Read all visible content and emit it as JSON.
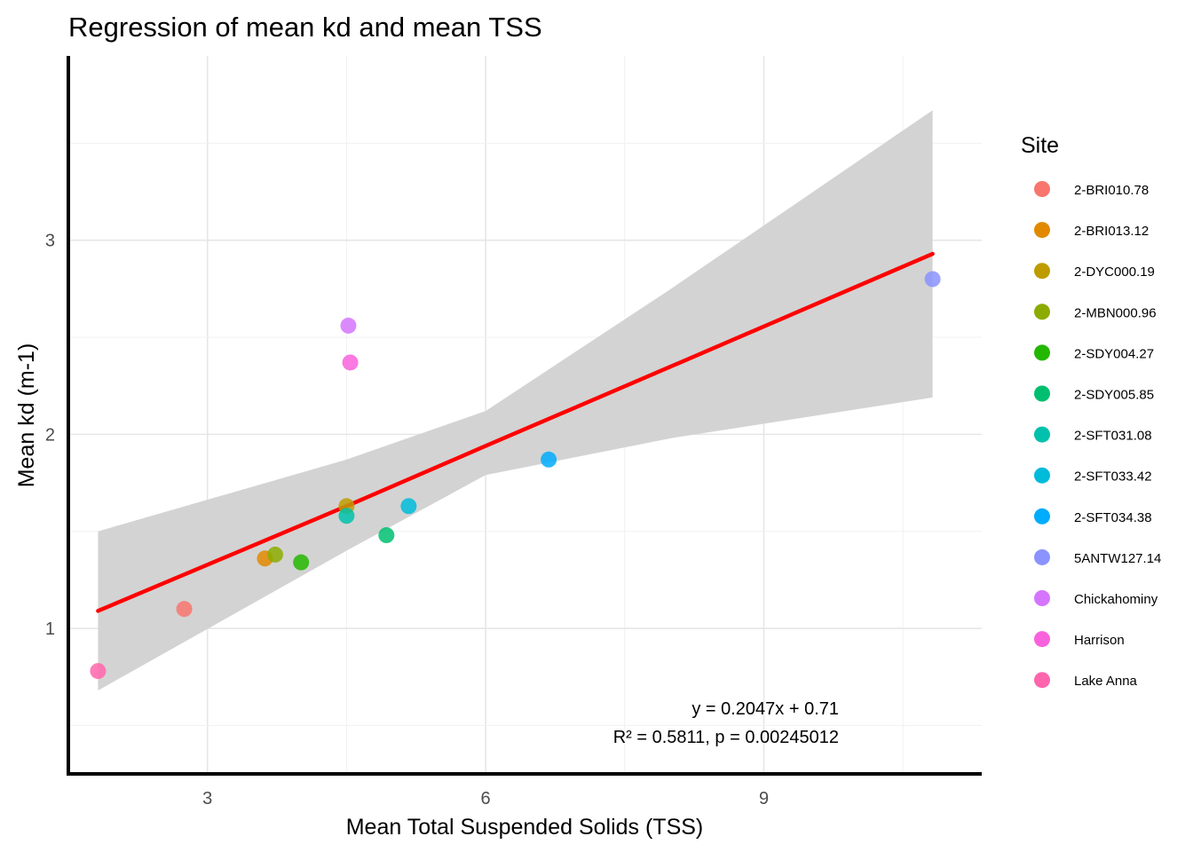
{
  "chart_data": {
    "type": "scatter",
    "title": "Regression of mean kd and mean TSS",
    "xlabel": "Mean Total Suspended Solids (TSS)",
    "ylabel": "Mean kd (m-1)",
    "xlim": [
      1.5,
      11.35
    ],
    "ylim": [
      0.25,
      3.95
    ],
    "x_ticks": [
      3,
      6,
      9
    ],
    "y_ticks": [
      1,
      2,
      3
    ],
    "x_tick_labels": [
      "3",
      "6",
      "9"
    ],
    "y_tick_labels": [
      "1",
      "2",
      "3"
    ],
    "grid": true,
    "legend": {
      "title": "Site",
      "placement": "right"
    },
    "series": [
      {
        "name": "2-BRI010.78",
        "color": "#F8766D",
        "x": [
          2.75
        ],
        "y": [
          1.1
        ]
      },
      {
        "name": "2-BRI013.12",
        "color": "#E18A00",
        "x": [
          3.62
        ],
        "y": [
          1.36
        ]
      },
      {
        "name": "2-DYC000.19",
        "color": "#BE9C00",
        "x": [
          4.5
        ],
        "y": [
          1.63
        ]
      },
      {
        "name": "2-MBN000.96",
        "color": "#8CAB00",
        "x": [
          3.73
        ],
        "y": [
          1.38
        ]
      },
      {
        "name": "2-SDY004.27",
        "color": "#24B700",
        "x": [
          4.01
        ],
        "y": [
          1.34
        ]
      },
      {
        "name": "2-SDY005.85",
        "color": "#00BE70",
        "x": [
          4.93
        ],
        "y": [
          1.48
        ]
      },
      {
        "name": "2-SFT031.08",
        "color": "#00C1AB",
        "x": [
          4.5
        ],
        "y": [
          1.58
        ]
      },
      {
        "name": "2-SFT033.42",
        "color": "#00BBDA",
        "x": [
          5.17
        ],
        "y": [
          1.63
        ]
      },
      {
        "name": "2-SFT034.38",
        "color": "#00ACFC",
        "x": [
          6.68
        ],
        "y": [
          1.87
        ]
      },
      {
        "name": "5ANTW127.14",
        "color": "#8B93FF",
        "x": [
          10.82
        ],
        "y": [
          2.8
        ]
      },
      {
        "name": "Chickahominy",
        "color": "#D575FE",
        "x": [
          4.52
        ],
        "y": [
          2.56
        ]
      },
      {
        "name": "Harrison",
        "color": "#F962DD",
        "x": [
          4.54
        ],
        "y": [
          2.37
        ]
      },
      {
        "name": "Lake Anna",
        "color": "#FF65AC",
        "x": [
          1.82
        ],
        "y": [
          0.78
        ]
      }
    ],
    "regression": {
      "line_color": "#FF0000",
      "band_color": "#D3D3D3",
      "x": [
        1.82,
        4.5,
        6.0,
        8.0,
        10.82
      ],
      "fit": [
        1.09,
        1.63,
        1.94,
        2.35,
        2.93
      ],
      "lower": [
        0.68,
        1.4,
        1.79,
        1.98,
        2.19
      ],
      "upper": [
        1.5,
        1.87,
        2.12,
        2.75,
        3.67
      ],
      "equation": "y = 0.2047x + 0.71",
      "stats": "R² = 0.5811, p = 0.00245012"
    }
  }
}
